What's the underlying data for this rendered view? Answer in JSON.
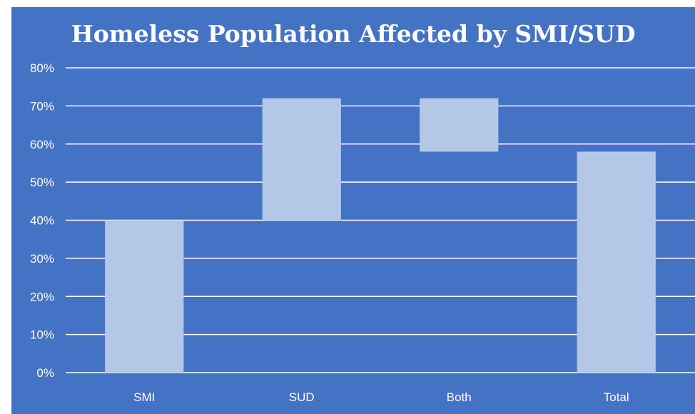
{
  "chart_data": {
    "type": "bar",
    "subtype": "waterfall",
    "title": "Homeless Population Affected by SMI/SUD",
    "xlabel": "",
    "ylabel": "",
    "categories": [
      "SMI",
      "SUD",
      "Both",
      "Total"
    ],
    "ranges": [
      [
        0,
        40
      ],
      [
        40,
        72
      ],
      [
        58,
        72
      ],
      [
        0,
        58
      ]
    ],
    "ylim": [
      0,
      80
    ],
    "yticks": [
      0,
      10,
      20,
      30,
      40,
      50,
      60,
      70,
      80
    ],
    "ytick_labels": [
      "0%",
      "10%",
      "20%",
      "30%",
      "40%",
      "50%",
      "60%",
      "70%",
      "80%"
    ],
    "grid": true,
    "legend": "none",
    "colors": {
      "background": "#4472c4",
      "bar": "#b4c7e7",
      "grid": "#ffffff",
      "text": "#ffffff"
    }
  }
}
